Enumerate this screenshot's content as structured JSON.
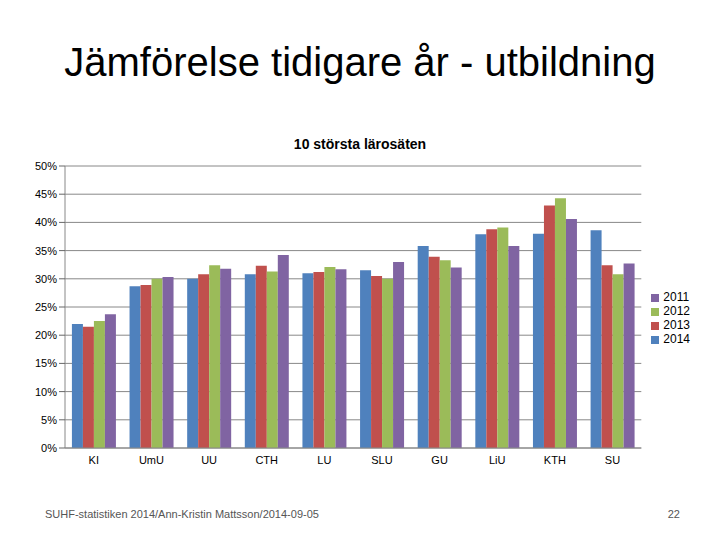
{
  "slide": {
    "title": "Jämförelse tidigare år - utbildning",
    "footer": "SUHF-statistiken 2014/Ann-Kristin Mattsson/2014-09-05",
    "page_number": 22
  },
  "chart_data": {
    "type": "bar",
    "title": "10 största lärosäten",
    "categories": [
      "KI",
      "UmU",
      "UU",
      "CTH",
      "LU",
      "SLU",
      "GU",
      "LiU",
      "KTH",
      "SU"
    ],
    "series": [
      {
        "name": "2014",
        "color": "#4f81bd",
        "values": [
          22,
          28.7,
          30,
          30.8,
          31,
          31.5,
          35.8,
          37.9,
          38,
          38.6
        ]
      },
      {
        "name": "2013",
        "color": "#c0504d",
        "values": [
          21.5,
          28.9,
          30.8,
          32.3,
          31.2,
          30.5,
          33.9,
          38.8,
          43,
          32.4
        ]
      },
      {
        "name": "2012",
        "color": "#9bbb59",
        "values": [
          22.5,
          30,
          32.4,
          31.3,
          32.1,
          30,
          33.3,
          39.1,
          44.3,
          30.8
        ]
      },
      {
        "name": "2011",
        "color": "#8064a2",
        "values": [
          23.7,
          30.3,
          31.8,
          34.2,
          31.7,
          33,
          32,
          35.8,
          40.6,
          32.7
        ]
      }
    ],
    "ylim": [
      0,
      50
    ],
    "yticks": [
      {
        "value": 0,
        "label": "0%"
      },
      {
        "value": 5,
        "label": "5%"
      },
      {
        "value": 10,
        "label": "10%"
      },
      {
        "value": 15,
        "label": "15%"
      },
      {
        "value": 20,
        "label": "20%"
      },
      {
        "value": 25,
        "label": "25%"
      },
      {
        "value": 30,
        "label": "30%"
      },
      {
        "value": 35,
        "label": "35%"
      },
      {
        "value": 40,
        "label": "40%"
      },
      {
        "value": 45,
        "label": "45%"
      },
      {
        "value": 50,
        "label": "50%"
      }
    ],
    "grid": true,
    "legend": "right"
  }
}
